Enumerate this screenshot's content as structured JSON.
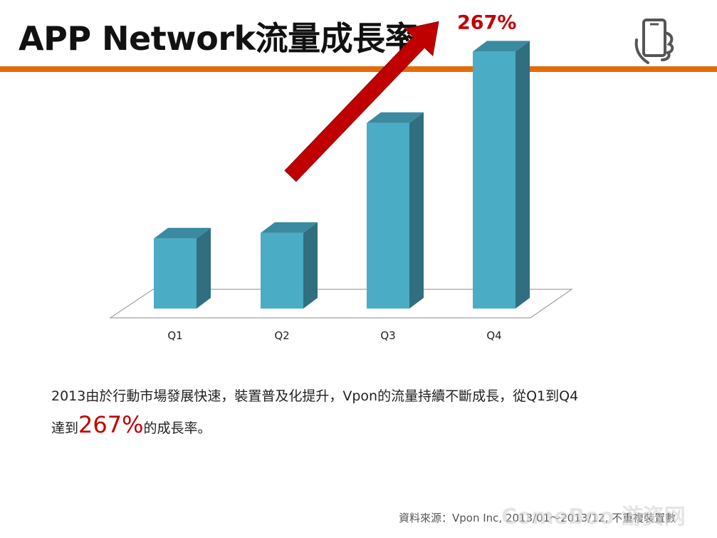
{
  "slide": {
    "title": "APP Network流量成長率",
    "icon": "hand-holding-phone-icon",
    "accent_color": "#e36c0a"
  },
  "chart_data": {
    "type": "bar",
    "categories": [
      "Q1",
      "Q2",
      "Q3",
      "Q4"
    ],
    "values": [
      100,
      108,
      265,
      367
    ],
    "ylim": [
      0,
      400
    ],
    "grid": false,
    "legend": "none",
    "bar_color": "#4bacc6",
    "annotation": {
      "text": "267%",
      "color": "#c00000",
      "arrow_from": "Q2",
      "arrow_to": "Q4"
    }
  },
  "description": {
    "line1": "2013由於行動市場發展快速，裝置普及化提升，Vpon的流量持續不斷成長，從Q1到Q4",
    "line2_before": "達到",
    "line2_highlight": "267%",
    "line2_after": "的成長率。"
  },
  "footer": {
    "source": "資料來源：Vpon Inc, 2013/01～2013/12, 不重複裝置數",
    "watermark": "ComeBoo 游资网"
  }
}
